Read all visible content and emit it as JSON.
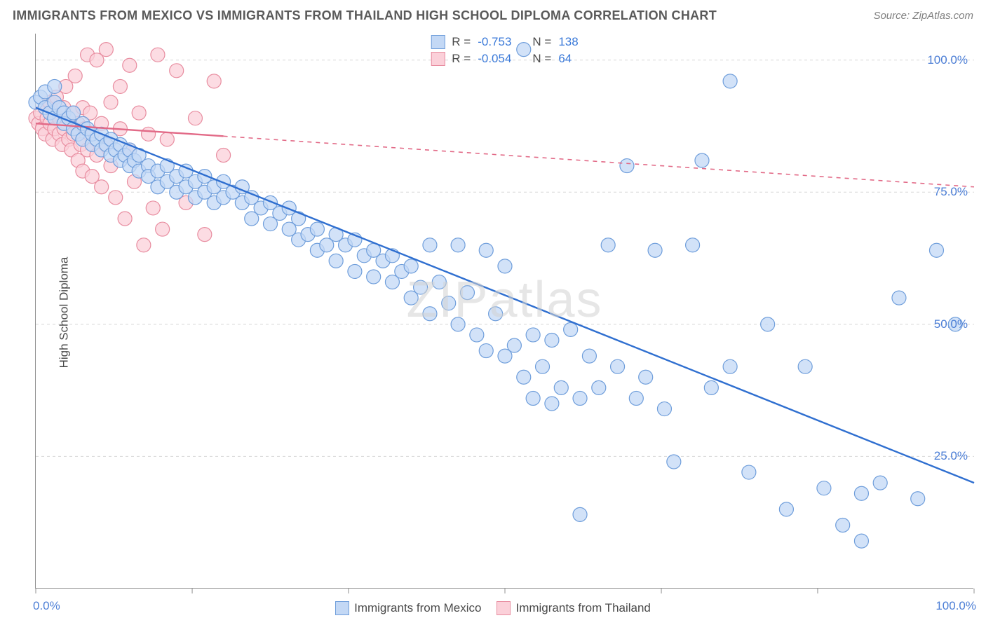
{
  "title": "IMMIGRANTS FROM MEXICO VS IMMIGRANTS FROM THAILAND HIGH SCHOOL DIPLOMA CORRELATION CHART",
  "source": "Source: ZipAtlas.com",
  "watermark": "ZIPatlas",
  "ylabel": "High School Diploma",
  "chart": {
    "type": "scatter",
    "xlim": [
      0,
      100
    ],
    "ylim": [
      0,
      105
    ],
    "xtick_labels": [
      "0.0%",
      "100.0%"
    ],
    "xtick_positions": [
      0,
      100
    ],
    "xtick_minor": [
      16.67,
      33.33,
      50,
      66.67,
      83.33
    ],
    "ytick_labels": [
      "25.0%",
      "50.0%",
      "75.0%",
      "100.0%"
    ],
    "ytick_positions": [
      25,
      50,
      75,
      100
    ],
    "grid_color": "#d8d8d8",
    "background_color": "#ffffff",
    "axis_color": "#909090"
  },
  "series": {
    "blue": {
      "label": "Immigrants from Mexico",
      "fill": "#c3d8f5",
      "stroke": "#6f9edb",
      "line_color": "#2f6fd0",
      "r_label": "R =",
      "r_value": "-0.753",
      "n_label": "N =",
      "n_value": "138",
      "trend": {
        "x1": 0,
        "y1": 91,
        "x2": 100,
        "y2": 20,
        "solid_until_x": 100
      },
      "points": [
        [
          0,
          92
        ],
        [
          0.5,
          93
        ],
        [
          1,
          94
        ],
        [
          1,
          91
        ],
        [
          1.5,
          90
        ],
        [
          2,
          92
        ],
        [
          2,
          89
        ],
        [
          2.5,
          91
        ],
        [
          3,
          90
        ],
        [
          2,
          95
        ],
        [
          3,
          88
        ],
        [
          3.5,
          89
        ],
        [
          4,
          87
        ],
        [
          4,
          90
        ],
        [
          4.5,
          86
        ],
        [
          5,
          88
        ],
        [
          5,
          85
        ],
        [
          5.5,
          87
        ],
        [
          6,
          84
        ],
        [
          6,
          86
        ],
        [
          6.5,
          85
        ],
        [
          7,
          83
        ],
        [
          7,
          86
        ],
        [
          7.5,
          84
        ],
        [
          8,
          82
        ],
        [
          8,
          85
        ],
        [
          8.5,
          83
        ],
        [
          9,
          81
        ],
        [
          9,
          84
        ],
        [
          9.5,
          82
        ],
        [
          10,
          80
        ],
        [
          10,
          83
        ],
        [
          10.5,
          81
        ],
        [
          11,
          79
        ],
        [
          11,
          82
        ],
        [
          12,
          80
        ],
        [
          12,
          78
        ],
        [
          13,
          79
        ],
        [
          13,
          76
        ],
        [
          14,
          80
        ],
        [
          14,
          77
        ],
        [
          15,
          78
        ],
        [
          15,
          75
        ],
        [
          16,
          76
        ],
        [
          16,
          79
        ],
        [
          17,
          77
        ],
        [
          17,
          74
        ],
        [
          18,
          75
        ],
        [
          18,
          78
        ],
        [
          19,
          76
        ],
        [
          19,
          73
        ],
        [
          20,
          74
        ],
        [
          20,
          77
        ],
        [
          21,
          75
        ],
        [
          22,
          73
        ],
        [
          22,
          76
        ],
        [
          23,
          70
        ],
        [
          23,
          74
        ],
        [
          24,
          72
        ],
        [
          25,
          69
        ],
        [
          25,
          73
        ],
        [
          26,
          71
        ],
        [
          27,
          68
        ],
        [
          27,
          72
        ],
        [
          28,
          70
        ],
        [
          28,
          66
        ],
        [
          29,
          67
        ],
        [
          30,
          68
        ],
        [
          30,
          64
        ],
        [
          31,
          65
        ],
        [
          32,
          62
        ],
        [
          32,
          67
        ],
        [
          33,
          65
        ],
        [
          34,
          60
        ],
        [
          34,
          66
        ],
        [
          35,
          63
        ],
        [
          36,
          59
        ],
        [
          36,
          64
        ],
        [
          37,
          62
        ],
        [
          38,
          58
        ],
        [
          38,
          63
        ],
        [
          39,
          60
        ],
        [
          40,
          55
        ],
        [
          40,
          61
        ],
        [
          41,
          57
        ],
        [
          42,
          65
        ],
        [
          42,
          52
        ],
        [
          43,
          58
        ],
        [
          44,
          54
        ],
        [
          45,
          65
        ],
        [
          45,
          50
        ],
        [
          46,
          56
        ],
        [
          47,
          48
        ],
        [
          48,
          64
        ],
        [
          48,
          45
        ],
        [
          49,
          52
        ],
        [
          50,
          44
        ],
        [
          50,
          61
        ],
        [
          51,
          46
        ],
        [
          52,
          40
        ],
        [
          53,
          48
        ],
        [
          53,
          36
        ],
        [
          54,
          42
        ],
        [
          55,
          35
        ],
        [
          55,
          47
        ],
        [
          56,
          38
        ],
        [
          57,
          49
        ],
        [
          58,
          36
        ],
        [
          59,
          44
        ],
        [
          60,
          38
        ],
        [
          61,
          65
        ],
        [
          62,
          42
        ],
        [
          63,
          80
        ],
        [
          64,
          36
        ],
        [
          65,
          40
        ],
        [
          66,
          64
        ],
        [
          67,
          34
        ],
        [
          68,
          24
        ],
        [
          70,
          65
        ],
        [
          71,
          81
        ],
        [
          72,
          38
        ],
        [
          74,
          42
        ],
        [
          74,
          96
        ],
        [
          76,
          22
        ],
        [
          78,
          50
        ],
        [
          80,
          15
        ],
        [
          82,
          42
        ],
        [
          84,
          19
        ],
        [
          86,
          12
        ],
        [
          88,
          18
        ],
        [
          88,
          9
        ],
        [
          90,
          20
        ],
        [
          92,
          55
        ],
        [
          94,
          17
        ],
        [
          96,
          64
        ],
        [
          98,
          50
        ],
        [
          52,
          102
        ],
        [
          58,
          14
        ]
      ]
    },
    "pink": {
      "label": "Immigrants from Thailand",
      "fill": "#fbd0d9",
      "stroke": "#e88da0",
      "line_color": "#e26a87",
      "r_label": "R =",
      "r_value": "-0.054",
      "n_label": "N =",
      "n_value": "64",
      "trend": {
        "x1": 0,
        "y1": 88,
        "x2": 100,
        "y2": 76,
        "solid_until_x": 20
      },
      "points": [
        [
          0,
          89
        ],
        [
          0.3,
          88
        ],
        [
          0.5,
          90
        ],
        [
          0.7,
          87
        ],
        [
          1,
          91
        ],
        [
          1,
          86
        ],
        [
          1.2,
          89
        ],
        [
          1.5,
          88
        ],
        [
          1.5,
          92
        ],
        [
          1.8,
          85
        ],
        [
          2,
          90
        ],
        [
          2,
          87
        ],
        [
          2.2,
          93
        ],
        [
          2.5,
          86
        ],
        [
          2.5,
          89
        ],
        [
          2.8,
          84
        ],
        [
          3,
          91
        ],
        [
          3,
          87
        ],
        [
          3.2,
          95
        ],
        [
          3.5,
          85
        ],
        [
          3.5,
          89
        ],
        [
          3.8,
          83
        ],
        [
          4,
          90
        ],
        [
          4,
          86
        ],
        [
          4.2,
          97
        ],
        [
          4.5,
          81
        ],
        [
          4.5,
          88
        ],
        [
          4.8,
          84
        ],
        [
          5,
          91
        ],
        [
          5,
          79
        ],
        [
          5.2,
          87
        ],
        [
          5.5,
          101
        ],
        [
          5.5,
          83
        ],
        [
          5.8,
          90
        ],
        [
          6,
          78
        ],
        [
          6,
          86
        ],
        [
          6.5,
          100
        ],
        [
          6.5,
          82
        ],
        [
          7,
          88
        ],
        [
          7,
          76
        ],
        [
          7.5,
          102
        ],
        [
          7.5,
          84
        ],
        [
          8,
          80
        ],
        [
          8,
          92
        ],
        [
          8.5,
          74
        ],
        [
          9,
          87
        ],
        [
          9,
          95
        ],
        [
          9.5,
          70
        ],
        [
          10,
          83
        ],
        [
          10,
          99
        ],
        [
          10.5,
          77
        ],
        [
          11,
          90
        ],
        [
          11.5,
          65
        ],
        [
          12,
          86
        ],
        [
          12.5,
          72
        ],
        [
          13,
          101
        ],
        [
          13.5,
          68
        ],
        [
          14,
          85
        ],
        [
          15,
          98
        ],
        [
          16,
          73
        ],
        [
          17,
          89
        ],
        [
          18,
          67
        ],
        [
          19,
          96
        ],
        [
          20,
          82
        ]
      ]
    }
  }
}
